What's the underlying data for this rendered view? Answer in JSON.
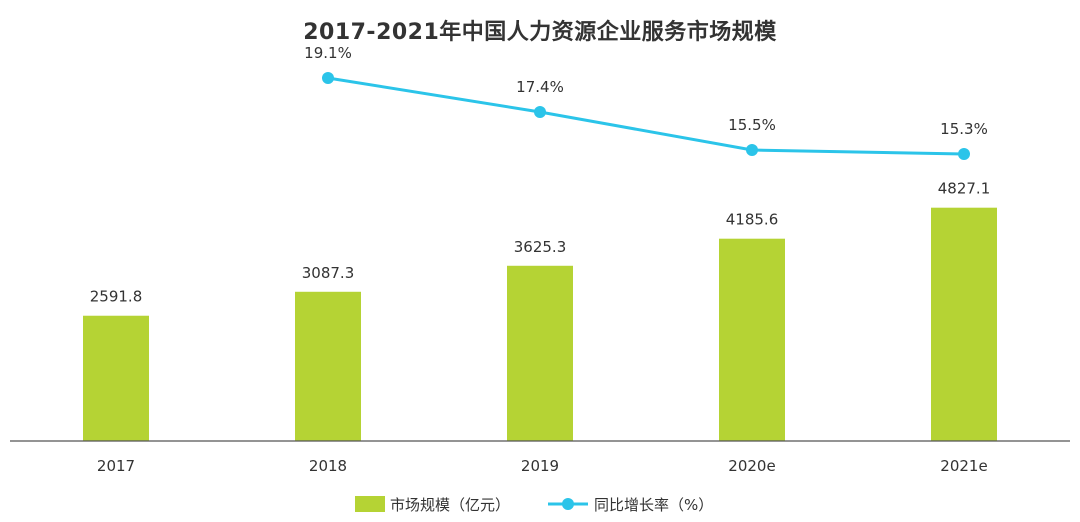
{
  "chart_data": {
    "type": "bar",
    "title": "2017-2021年中国人力资源企业服务市场规模",
    "categories": [
      "2017",
      "2018",
      "2019",
      "2020e",
      "2021e"
    ],
    "series": [
      {
        "name": "市场规模（亿元）",
        "type": "bar",
        "values": [
          2591.8,
          3087.3,
          3625.3,
          4185.6,
          4827.1
        ]
      },
      {
        "name": "同比增长率（%）",
        "type": "line",
        "values": [
          null,
          19.1,
          17.4,
          15.5,
          15.3
        ]
      }
    ],
    "bar_labels": [
      "2591.8",
      "3087.3",
      "3625.3",
      "4185.6",
      "4827.1"
    ],
    "line_labels": [
      "",
      "19.1%",
      "17.4%",
      "15.5%",
      "15.3%"
    ],
    "bar_ylim": [
      0,
      5400
    ],
    "line_ylim": [
      13,
      20
    ],
    "xlabel": "",
    "ylabel": "",
    "grid": false,
    "legend_position": "bottom-center",
    "colors": {
      "bar": "#b5d334",
      "line": "#2bc4e9",
      "axis": "#555555"
    }
  }
}
